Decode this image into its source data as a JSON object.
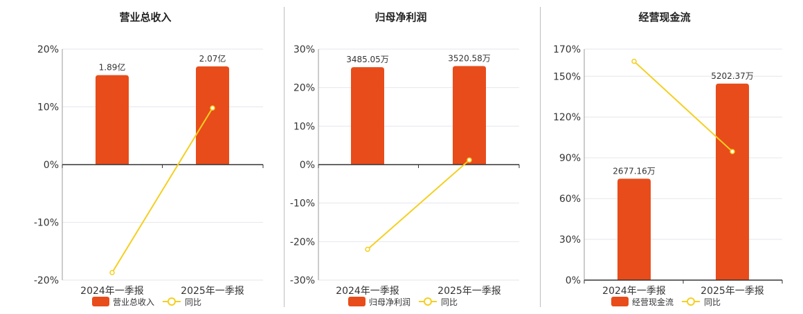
{
  "colors": {
    "bar": "#E84C1B",
    "line": "#F5CF1F",
    "marker_fill": "#FFFFFF",
    "grid": "#E6E6EE",
    "axis": "#333333",
    "text": "#333333"
  },
  "chart_data": [
    {
      "type": "bar",
      "title": "营业总收入",
      "categories": [
        "2024年一季报",
        "2025年一季报"
      ],
      "ylim": [
        -20,
        20
      ],
      "yticks": [
        -20,
        -10,
        0,
        10,
        20
      ],
      "ytick_labels": [
        "-20%",
        "-10%",
        "0%",
        "10%",
        "20%"
      ],
      "series": [
        {
          "name": "营业总收入",
          "kind": "bar",
          "values": [
            15.5,
            17.0
          ],
          "labels": [
            "1.89亿",
            "2.07亿"
          ]
        },
        {
          "name": "同比",
          "kind": "line",
          "values": [
            -18.7,
            9.8
          ]
        }
      ],
      "legend": [
        "营业总收入",
        "同比"
      ]
    },
    {
      "type": "bar",
      "title": "归母净利润",
      "categories": [
        "2024年一季报",
        "2025年一季报"
      ],
      "ylim": [
        -30,
        30
      ],
      "yticks": [
        -30,
        -20,
        -10,
        0,
        10,
        20,
        30
      ],
      "ytick_labels": [
        "-30%",
        "-20%",
        "-10%",
        "0%",
        "10%",
        "20%",
        "30%"
      ],
      "series": [
        {
          "name": "归母净利润",
          "kind": "bar",
          "values": [
            25.3,
            25.6
          ],
          "labels": [
            "3485.05万",
            "3520.58万"
          ]
        },
        {
          "name": "同比",
          "kind": "line",
          "values": [
            -22.0,
            1.2
          ]
        }
      ],
      "legend": [
        "归母净利润",
        "同比"
      ]
    },
    {
      "type": "bar",
      "title": "经营现金流",
      "categories": [
        "2024年一季报",
        "2025年一季报"
      ],
      "ylim": [
        0,
        170
      ],
      "yticks": [
        0,
        30,
        60,
        90,
        120,
        150,
        170
      ],
      "ytick_labels": [
        "0%",
        "30%",
        "60%",
        "90%",
        "120%",
        "150%",
        "170%"
      ],
      "series": [
        {
          "name": "经营现金流",
          "kind": "bar",
          "values": [
            74.6,
            144.6
          ],
          "labels": [
            "2677.16万",
            "5202.37万"
          ]
        },
        {
          "name": "同比",
          "kind": "line",
          "values": [
            161.0,
            94.6
          ]
        }
      ],
      "legend": [
        "经营现金流",
        "同比"
      ]
    }
  ]
}
